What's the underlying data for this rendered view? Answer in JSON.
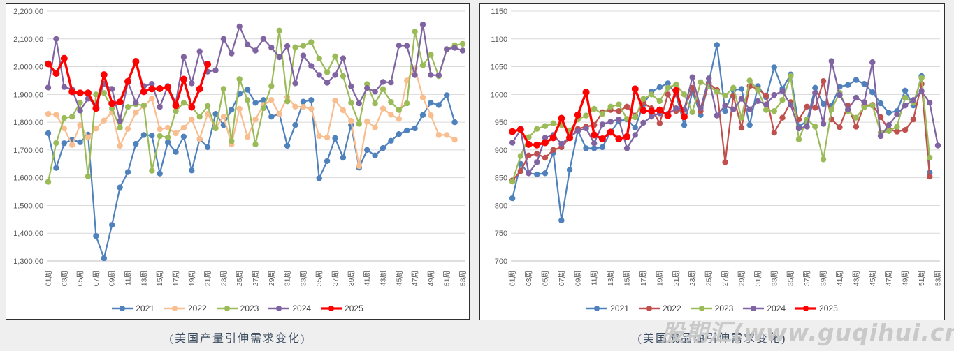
{
  "page": {
    "background": "#efefef",
    "watermark": "股期汇(www.guqihui.cn)",
    "watermark_color": "#c7c7c7"
  },
  "chart_data": [
    {
      "type": "line",
      "title": "(美国产量引伸需求变化)",
      "x_unit": "周",
      "weeks_total": 53,
      "x_labels": [
        "01周",
        "03周",
        "05周",
        "07周",
        "09周",
        "11周",
        "13周",
        "15周",
        "17周",
        "19周",
        "21周",
        "23周",
        "25周",
        "27周",
        "29周",
        "31周",
        "33周",
        "35周",
        "37周",
        "39周",
        "41周",
        "43周",
        "45周",
        "47周",
        "49周",
        "51周",
        "53周"
      ],
      "y_axis": {
        "min": 1300,
        "max": 2200,
        "step": 100,
        "label_format": "comma2"
      },
      "grid": true,
      "legend_position": "bottom",
      "series": [
        {
          "name": "2021",
          "color": "#4F81BD",
          "emphasis": false,
          "values": [
            1760,
            1635,
            1724,
            1737,
            1728,
            1755,
            1390,
            1310,
            1430,
            1565,
            1620,
            1722,
            1754,
            1752,
            1615,
            1728,
            1693,
            1748,
            1626,
            1739,
            1710,
            1830,
            1790,
            1845,
            1902,
            1917,
            1870,
            1880,
            1820,
            1830,
            1715,
            1790,
            1874,
            1880,
            1598,
            1660,
            1743,
            1672,
            1790,
            1636,
            1700,
            1680,
            1707,
            1733,
            1757,
            1770,
            1778,
            1826,
            1870,
            1862,
            1897,
            1800
          ]
        },
        {
          "name": "2022",
          "color": "#F9BE8F",
          "emphasis": false,
          "values": [
            1830,
            1827,
            1778,
            1718,
            1790,
            1745,
            1777,
            1806,
            1835,
            1715,
            1776,
            1835,
            1858,
            1885,
            1775,
            1780,
            1760,
            1780,
            1810,
            1740,
            1830,
            1780,
            1820,
            1720,
            1848,
            1747,
            1810,
            1862,
            1880,
            1830,
            1890,
            1856,
            1855,
            1848,
            1750,
            1745,
            1878,
            1843,
            1805,
            1642,
            1803,
            1781,
            1849,
            1827,
            1812,
            1950,
            1995,
            1889,
            1825,
            1754,
            1754,
            1737
          ]
        },
        {
          "name": "2023",
          "color": "#9BBB59",
          "emphasis": false,
          "values": [
            1585,
            1725,
            1815,
            1820,
            1870,
            1605,
            1900,
            1905,
            1850,
            1780,
            1855,
            1865,
            1860,
            1625,
            1750,
            1745,
            1840,
            1870,
            1855,
            1820,
            1858,
            1778,
            1920,
            1732,
            1955,
            1880,
            1720,
            1850,
            1930,
            2130,
            1875,
            2070,
            2075,
            2088,
            2029,
            1980,
            2037,
            1966,
            1870,
            1794,
            1937,
            1868,
            1919,
            1873,
            1844,
            1868,
            2126,
            2005,
            2043,
            1966,
            2062,
            2077,
            2082
          ]
        },
        {
          "name": "2024",
          "color": "#8064A2",
          "emphasis": false,
          "values": [
            1925,
            2100,
            1927,
            1918,
            1842,
            1885,
            1862,
            1938,
            1920,
            1805,
            1945,
            1870,
            1930,
            1938,
            1855,
            1930,
            1870,
            2035,
            1940,
            2055,
            1982,
            1987,
            2100,
            2048,
            2145,
            2080,
            2058,
            2100,
            2069,
            2034,
            2074,
            1940,
            2040,
            2003,
            1970,
            1942,
            1970,
            2030,
            1929,
            1868,
            1923,
            1910,
            1945,
            1943,
            2076,
            2075,
            1970,
            2152,
            1970,
            1969,
            2063,
            2068,
            2058
          ]
        },
        {
          "name": "2025",
          "color": "#FF0000",
          "emphasis": true,
          "values": [
            2010,
            1976,
            2030,
            1910,
            1905,
            1905,
            1850,
            1971,
            1867,
            1873,
            1947,
            2019,
            1910,
            1920,
            1921,
            1926,
            1860,
            1955,
            1854,
            1920,
            2009
          ]
        }
      ]
    },
    {
      "type": "line",
      "title": "(美国成品油引伸需求变化)",
      "x_unit": "周",
      "weeks_total": 53,
      "x_labels": [
        "01周",
        "03周",
        "05周",
        "07周",
        "09周",
        "11周",
        "13周",
        "15周",
        "17周",
        "19周",
        "21周",
        "23周",
        "25周",
        "27周",
        "29周",
        "31周",
        "33周",
        "35周",
        "37周",
        "39周",
        "41周",
        "43周",
        "45周",
        "47周",
        "49周",
        "51周",
        "53周"
      ],
      "y_axis": {
        "min": 700,
        "max": 1150,
        "step": 50,
        "label_format": "plain"
      },
      "grid": true,
      "legend_position": "bottom",
      "series": [
        {
          "name": "2021",
          "color": "#4F81BD",
          "emphasis": false,
          "values": [
            813,
            875,
            858,
            856,
            858,
            895,
            773,
            864,
            935,
            903,
            903,
            905,
            932,
            952,
            955,
            940,
            982,
            1005,
            1013,
            1020,
            1000,
            945,
            1005,
            963,
            1022,
            1089,
            970,
            1008,
            1010,
            945,
            1015,
            995,
            1049,
            1010,
            1036,
            942,
            952,
            1012,
            983,
            980,
            1014,
            1017,
            1026,
            1019,
            1004,
            984,
            967,
            970,
            1007,
            980,
            1033,
            859
          ]
        },
        {
          "name": "2022",
          "color": "#C0504D",
          "emphasis": false,
          "values": [
            845,
            862,
            890,
            893,
            886,
            900,
            905,
            922,
            938,
            942,
            945,
            968,
            972,
            970,
            978,
            962,
            985,
            975,
            948,
            1000,
            970,
            972,
            1012,
            970,
            1020,
            1008,
            878,
            998,
            940,
            1015,
            1010,
            998,
            931,
            958,
            986,
            955,
            978,
            976,
            1024,
            955,
            941,
            980,
            942,
            980,
            981,
            959,
            937,
            933,
            936,
            955,
            1019,
            852
          ]
        },
        {
          "name": "2023",
          "color": "#9BBB59",
          "emphasis": false,
          "values": [
            843,
            889,
            923,
            938,
            943,
            948,
            945,
            935,
            955,
            962,
            974,
            965,
            978,
            982,
            956,
            959,
            992,
            1000,
            988,
            1012,
            1018,
            1000,
            968,
            1022,
            1015,
            1005,
            998,
            1012,
            958,
            1025,
            1008,
            972,
            970,
            990,
            1033,
            919,
            955,
            942,
            883,
            973,
            1003,
            970,
            958,
            977,
            980,
            931,
            934,
            942,
            994,
            985,
            1030,
            886
          ]
        },
        {
          "name": "2024",
          "color": "#8064A2",
          "emphasis": false,
          "values": [
            913,
            936,
            858,
            878,
            922,
            927,
            911,
            923,
            934,
            939,
            912,
            946,
            951,
            955,
            903,
            927,
            949,
            960,
            966,
            965,
            975,
            973,
            1031,
            975,
            1029,
            962,
            980,
            973,
            992,
            973,
            988,
            982,
            999,
            1006,
            981,
            939,
            942,
            1003,
            947,
            1060,
            999,
            973,
            994,
            986,
            1058,
            925,
            945,
            964,
            980,
            990,
            1006,
            985,
            908
          ]
        },
        {
          "name": "2025",
          "color": "#FF0000",
          "emphasis": true,
          "values": [
            933,
            937,
            910,
            909,
            913,
            922,
            957,
            922,
            963,
            1004,
            927,
            920,
            932,
            920,
            924,
            1010,
            971,
            970,
            972,
            962,
            1007,
            960
          ]
        }
      ]
    }
  ]
}
